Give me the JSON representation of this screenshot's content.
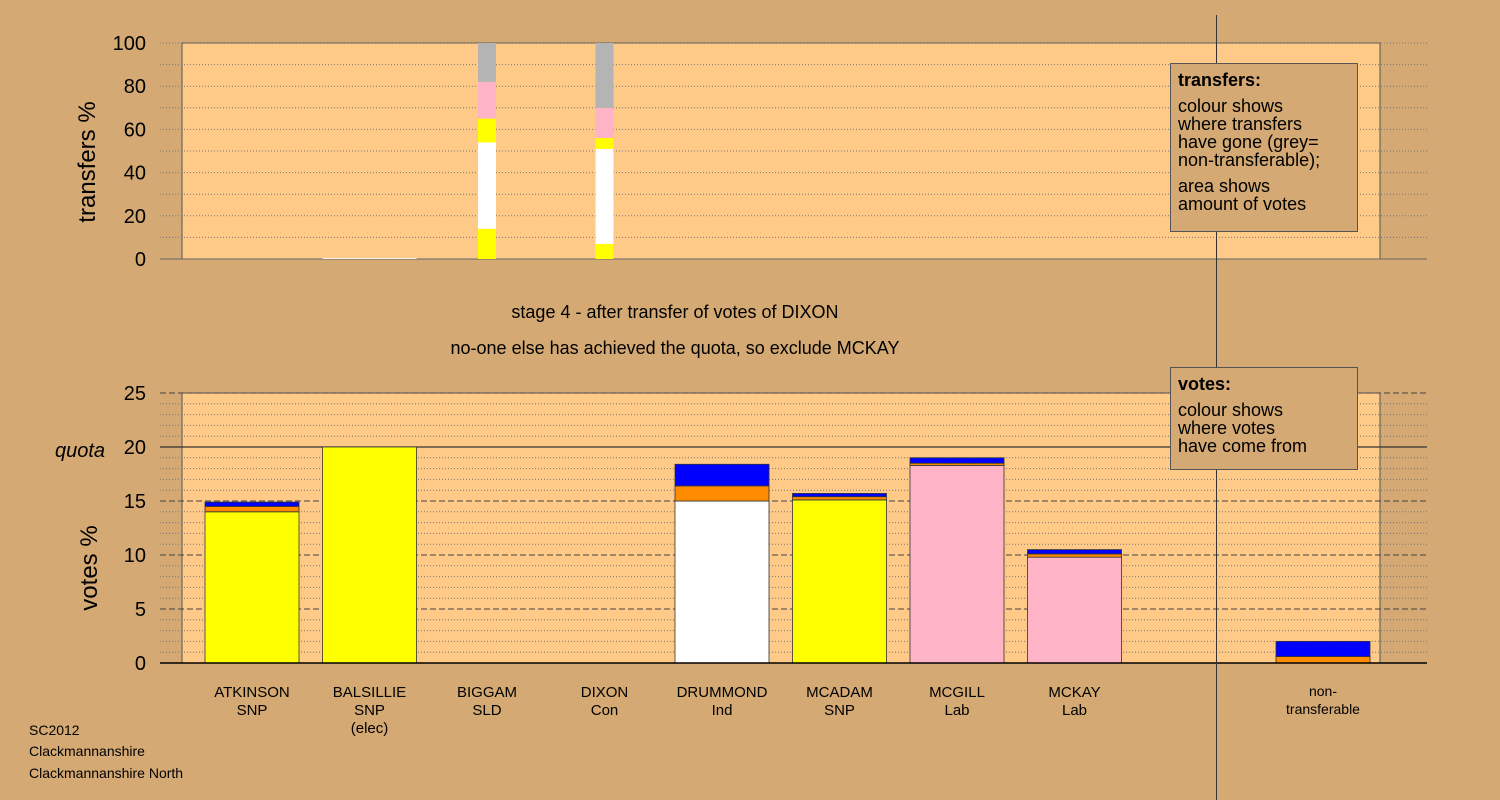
{
  "colors": {
    "page_bg": "#D4A973",
    "plot_bg": "#FFC987",
    "SNP": "#FFFF00",
    "Lab": "#FFB3C6",
    "Ind": "#FFFFFF",
    "Con": "#0000FF",
    "SLD": "#FF8C00",
    "nontransferable": "#B4B4B4"
  },
  "stage": {
    "line1": "stage 4 - after transfer of votes of DIXON",
    "line2": "no-one else has achieved the quota, so exclude MCKAY"
  },
  "legend_transfers": {
    "title": "transfers:",
    "lines1": [
      "colour shows",
      "where transfers",
      "have gone (grey=",
      "non-transferable);"
    ],
    "lines2": [
      "area shows",
      "amount of votes"
    ]
  },
  "legend_votes": {
    "title": "votes:",
    "lines": [
      "colour shows",
      "where votes",
      "have come from"
    ]
  },
  "info": [
    "SC2012",
    "Clackmannanshire",
    "Clackmannanshire North"
  ],
  "chart_data": [
    {
      "type": "bar",
      "ylabel": "transfers %",
      "ylim": [
        0,
        100
      ],
      "yticks": [
        0,
        20,
        40,
        60,
        80,
        100
      ],
      "categories": [
        "ATKINSON",
        "BALSILLIE",
        "BIGGAM",
        "DIXON",
        "DRUMMOND",
        "MCADAM",
        "MCGILL",
        "MCKAY"
      ],
      "stacks": [
        [],
        [],
        [
          {
            "color": "SNP",
            "value": 14
          },
          {
            "color": "Ind",
            "value": 40
          },
          {
            "color": "SNP",
            "value": 11
          },
          {
            "color": "Lab",
            "value": 17
          },
          {
            "color": "nontransferable",
            "value": 18
          }
        ],
        [
          {
            "color": "SNP",
            "value": 7
          },
          {
            "color": "Ind",
            "value": 44
          },
          {
            "color": "SNP",
            "value": 5
          },
          {
            "color": "Lab",
            "value": 14
          },
          {
            "color": "nontransferable",
            "value": 30
          }
        ],
        [],
        [],
        [],
        []
      ]
    },
    {
      "type": "bar",
      "ylabel": "votes %",
      "ylim": [
        0,
        25
      ],
      "yticks": [
        0,
        5,
        10,
        15,
        20,
        25
      ],
      "quota": 20,
      "quota_label": "quota",
      "candidates": [
        {
          "name": "ATKINSON",
          "party": "SNP",
          "note": "",
          "segments": [
            {
              "color": "SNP",
              "value": 14.0
            },
            {
              "color": "SLD",
              "value": 0.5
            },
            {
              "color": "Con",
              "value": 0.4
            }
          ]
        },
        {
          "name": "BALSILLIE",
          "party": "SNP",
          "note": "(elec)",
          "segments": [
            {
              "color": "SNP",
              "value": 20.0
            }
          ]
        },
        {
          "name": "BIGGAM",
          "party": "SLD",
          "note": "",
          "segments": []
        },
        {
          "name": "DIXON",
          "party": "Con",
          "note": "",
          "segments": []
        },
        {
          "name": "DRUMMOND",
          "party": "Ind",
          "note": "",
          "segments": [
            {
              "color": "Ind",
              "value": 15.0
            },
            {
              "color": "SLD",
              "value": 1.4
            },
            {
              "color": "Con",
              "value": 2.0
            }
          ]
        },
        {
          "name": "MCADAM",
          "party": "SNP",
          "note": "",
          "segments": [
            {
              "color": "SNP",
              "value": 15.1
            },
            {
              "color": "SLD",
              "value": 0.3
            },
            {
              "color": "Con",
              "value": 0.3
            }
          ]
        },
        {
          "name": "MCGILL",
          "party": "Lab",
          "note": "",
          "segments": [
            {
              "color": "Lab",
              "value": 18.3
            },
            {
              "color": "SLD",
              "value": 0.2
            },
            {
              "color": "Con",
              "value": 0.5
            }
          ]
        },
        {
          "name": "MCKAY",
          "party": "Lab",
          "note": "",
          "segments": [
            {
              "color": "Lab",
              "value": 9.8
            },
            {
              "color": "SLD",
              "value": 0.3
            },
            {
              "color": "Con",
              "value": 0.4
            }
          ]
        }
      ],
      "nontransferable": {
        "label_line1": "non-",
        "label_line2": "transferable",
        "segments": [
          {
            "color": "SLD",
            "value": 0.6
          },
          {
            "color": "Con",
            "value": 1.4
          }
        ]
      }
    }
  ]
}
